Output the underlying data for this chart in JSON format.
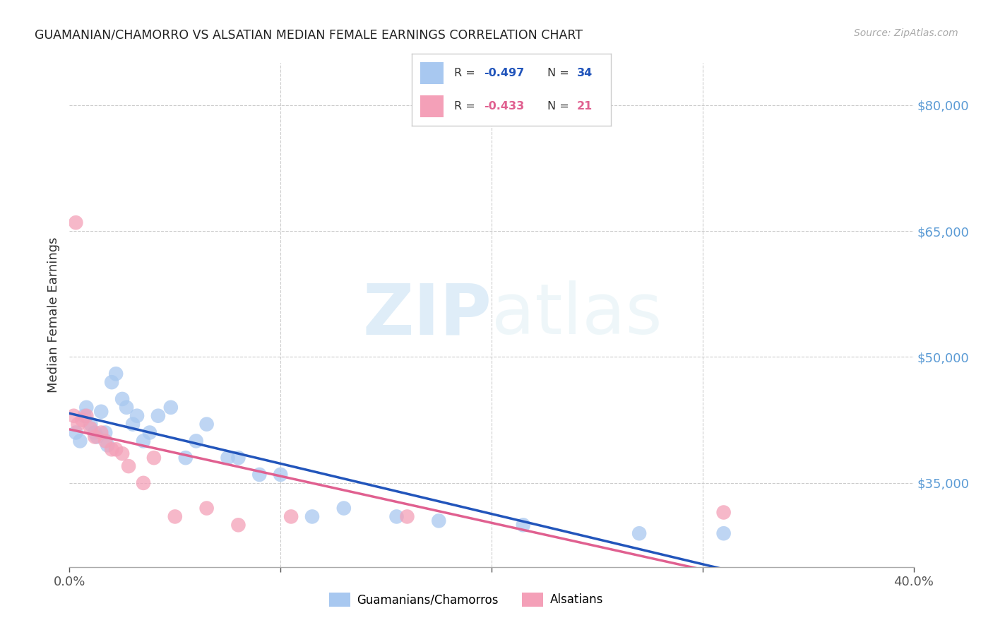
{
  "title": "GUAMANIAN/CHAMORRO VS ALSATIAN MEDIAN FEMALE EARNINGS CORRELATION CHART",
  "source": "Source: ZipAtlas.com",
  "ylabel": "Median Female Earnings",
  "watermark_zip": "ZIP",
  "watermark_atlas": "atlas",
  "xlim": [
    0.0,
    0.4
  ],
  "ylim": [
    25000,
    85000
  ],
  "xtick_positions": [
    0.0,
    0.1,
    0.2,
    0.3,
    0.4
  ],
  "xticklabels_show": [
    "0.0%",
    "",
    "",
    "",
    "40.0%"
  ],
  "yticks_right": [
    35000,
    50000,
    65000,
    80000
  ],
  "yticklabels_right": [
    "$35,000",
    "$50,000",
    "$65,000",
    "$80,000"
  ],
  "blue_color": "#a8c8f0",
  "pink_color": "#f4a0b8",
  "blue_line_color": "#2255bb",
  "pink_line_color": "#e06090",
  "legend_R_blue": "-0.497",
  "legend_N_blue": "34",
  "legend_R_pink": "-0.433",
  "legend_N_pink": "21",
  "label_blue": "Guamanians/Chamorros",
  "label_pink": "Alsatians",
  "title_color": "#222222",
  "source_color": "#aaaaaa",
  "right_label_color": "#5b9bd5",
  "grid_color": "#cccccc",
  "blue_scatter_x": [
    0.003,
    0.005,
    0.007,
    0.008,
    0.01,
    0.012,
    0.013,
    0.015,
    0.017,
    0.018,
    0.02,
    0.022,
    0.025,
    0.027,
    0.03,
    0.032,
    0.035,
    0.038,
    0.042,
    0.048,
    0.055,
    0.06,
    0.065,
    0.075,
    0.08,
    0.09,
    0.1,
    0.115,
    0.13,
    0.155,
    0.175,
    0.215,
    0.27,
    0.31
  ],
  "blue_scatter_y": [
    41000,
    40000,
    43000,
    44000,
    42000,
    41000,
    40500,
    43500,
    41000,
    39500,
    47000,
    48000,
    45000,
    44000,
    42000,
    43000,
    40000,
    41000,
    43000,
    44000,
    38000,
    40000,
    42000,
    38000,
    38000,
    36000,
    36000,
    31000,
    32000,
    31000,
    30500,
    30000,
    29000,
    29000
  ],
  "pink_scatter_x": [
    0.002,
    0.004,
    0.006,
    0.008,
    0.01,
    0.012,
    0.015,
    0.017,
    0.02,
    0.022,
    0.025,
    0.028,
    0.035,
    0.04,
    0.05,
    0.065,
    0.08,
    0.105,
    0.16,
    0.31,
    0.003
  ],
  "pink_scatter_y": [
    43000,
    42000,
    42500,
    43000,
    41500,
    40500,
    41000,
    40000,
    39000,
    39000,
    38500,
    37000,
    35000,
    38000,
    31000,
    32000,
    30000,
    31000,
    31000,
    31500,
    66000
  ]
}
